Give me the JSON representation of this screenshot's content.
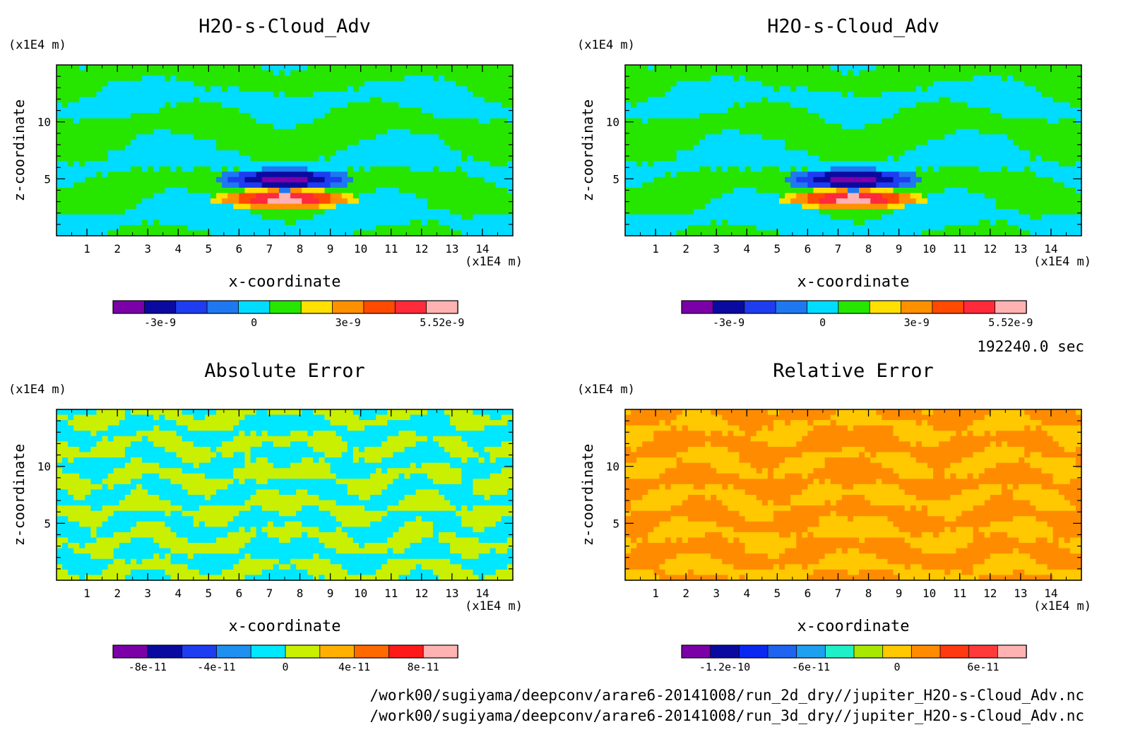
{
  "time_label": "192240.0 sec",
  "footer": {
    "line1": "/work00/sugiyama/deepconv/arare6-20141008/run_2d_dry//jupiter_H2O-s-Cloud_Adv.nc",
    "line2": "/work00/sugiyama/deepconv/arare6-20141008/run_3d_dry//jupiter_H2O-s-Cloud_Adv.nc"
  },
  "chart_data": [
    {
      "type": "heatmap",
      "title": "H2O-s-Cloud_Adv",
      "xlabel": "x-coordinate",
      "ylabel": "z-coordinate",
      "xunit": "(x1E4 m)",
      "yunit": "(x1E4 m)",
      "xticks": [
        "1",
        "2",
        "3",
        "4",
        "5",
        "6",
        "7",
        "8",
        "9",
        "10",
        "11",
        "12",
        "13",
        "14"
      ],
      "yticks": [
        "5",
        "10"
      ],
      "xlim": [
        0,
        15
      ],
      "ylim": [
        0,
        15
      ],
      "colorbar": {
        "labels": [
          "-3e-9",
          "0",
          "3e-9",
          "5.52e-9"
        ],
        "label_positions": [
          1.5,
          4.5,
          7.5,
          10.5
        ],
        "colors": [
          "#7b00a8",
          "#0a0aa0",
          "#1e3cf0",
          "#1e78f0",
          "#00dcff",
          "#26e600",
          "#ffe000",
          "#ff9000",
          "#ff4a00",
          "#ff2a3a",
          "#ffb2b2"
        ]
      },
      "pattern": "field"
    },
    {
      "type": "heatmap",
      "title": "H2O-s-Cloud_Adv",
      "xlabel": "x-coordinate",
      "ylabel": "z-coordinate",
      "xunit": "(x1E4 m)",
      "yunit": "(x1E4 m)",
      "xticks": [
        "1",
        "2",
        "3",
        "4",
        "5",
        "6",
        "7",
        "8",
        "9",
        "10",
        "11",
        "12",
        "13",
        "14"
      ],
      "yticks": [
        "5",
        "10"
      ],
      "xlim": [
        0,
        15
      ],
      "ylim": [
        0,
        15
      ],
      "colorbar": {
        "labels": [
          "-3e-9",
          "0",
          "3e-9",
          "5.52e-9"
        ],
        "label_positions": [
          1.5,
          4.5,
          7.5,
          10.5
        ],
        "colors": [
          "#7b00a8",
          "#0a0aa0",
          "#1e3cf0",
          "#1e78f0",
          "#00dcff",
          "#26e600",
          "#ffe000",
          "#ff9000",
          "#ff4a00",
          "#ff2a3a",
          "#ffb2b2"
        ]
      },
      "pattern": "field"
    },
    {
      "type": "heatmap",
      "title": "Absolute Error",
      "xlabel": "x-coordinate",
      "ylabel": "z-coordinate",
      "xunit": "(x1E4 m)",
      "yunit": "(x1E4 m)",
      "xticks": [
        "1",
        "2",
        "3",
        "4",
        "5",
        "6",
        "7",
        "8",
        "9",
        "10",
        "11",
        "12",
        "13",
        "14"
      ],
      "yticks": [
        "5",
        "10"
      ],
      "xlim": [
        0,
        15
      ],
      "ylim": [
        0,
        15
      ],
      "colorbar": {
        "labels": [
          "-8e-11",
          "-4e-11",
          "0",
          "4e-11",
          "8e-11"
        ],
        "label_positions": [
          1,
          3,
          5,
          7,
          9
        ],
        "colors": [
          "#7b00a8",
          "#0a0aa0",
          "#1e3cf0",
          "#1e90f0",
          "#00e8ff",
          "#c8f000",
          "#ffb000",
          "#ff6a00",
          "#ff1a1a",
          "#ffb2b2"
        ]
      },
      "pattern": "abs"
    },
    {
      "type": "heatmap",
      "title": "Relative Error",
      "xlabel": "x-coordinate",
      "ylabel": "z-coordinate",
      "xunit": "(x1E4 m)",
      "yunit": "(x1E4 m)",
      "xticks": [
        "1",
        "2",
        "3",
        "4",
        "5",
        "6",
        "7",
        "8",
        "9",
        "10",
        "11",
        "12",
        "13",
        "14"
      ],
      "yticks": [
        "5",
        "10"
      ],
      "xlim": [
        0,
        15
      ],
      "ylim": [
        0,
        15
      ],
      "colorbar": {
        "labels": [
          "-1.2e-10",
          "-6e-11",
          "0",
          "6e-11"
        ],
        "label_positions": [
          1.5,
          4.5,
          7.5,
          10.5
        ],
        "colors": [
          "#7b00a8",
          "#0a0aa0",
          "#0a28f0",
          "#1e64f0",
          "#1ea0f0",
          "#20f0c8",
          "#a8e800",
          "#ffc800",
          "#ff8c00",
          "#ff3a10",
          "#ff3a3a",
          "#ffb2b2"
        ]
      },
      "pattern": "rel"
    }
  ]
}
